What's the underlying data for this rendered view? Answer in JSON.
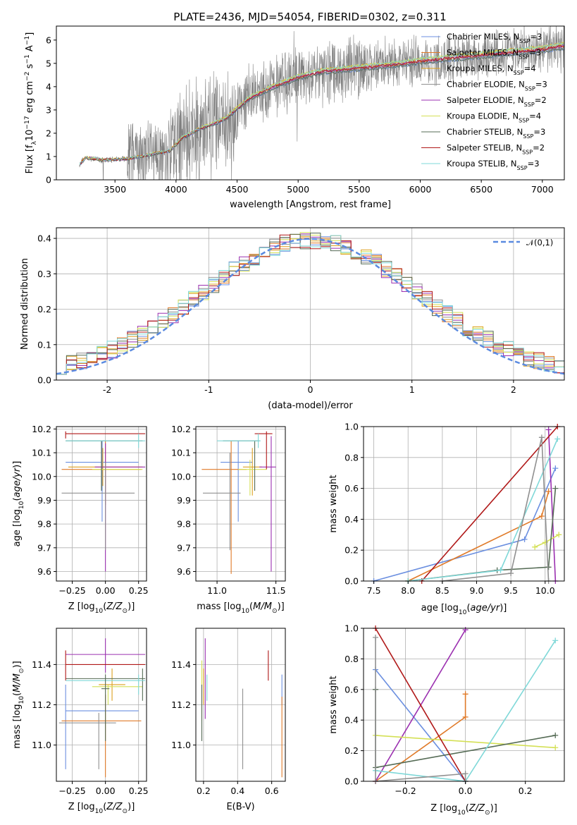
{
  "figure_title": "PLATE=2436, MJD=54054, FIBERID=0302, z=0.311",
  "series": [
    {
      "name": "Chabrier MILES",
      "nssp": "3",
      "color": "#6b8fe0"
    },
    {
      "name": "Salpeter MILES",
      "nssp": "3",
      "color": "#e07a28"
    },
    {
      "name": "Kroupa MILES",
      "nssp": "4",
      "color": "#dda020"
    },
    {
      "name": "Chabrier ELODIE",
      "nssp": "3",
      "color": "#909090"
    },
    {
      "name": "Salpeter ELODIE",
      "nssp": "2",
      "color": "#9b30b0"
    },
    {
      "name": "Kroupa ELODIE",
      "nssp": "4",
      "color": "#d4e055"
    },
    {
      "name": "Chabrier STELIB",
      "nssp": "3",
      "color": "#556b55"
    },
    {
      "name": "Salpeter STELIB",
      "nssp": "2",
      "color": "#b01818"
    },
    {
      "name": "Kroupa STELIB",
      "nssp": "3",
      "color": "#7fd8d8"
    }
  ],
  "chart_data": [
    {
      "id": "spectrum",
      "type": "line",
      "xlabel": "wavelength [Angstrom, rest frame]",
      "ylabel": "Flux [f_λ 10^-17 erg cm^-2 s^-1 A^-1]",
      "xlim": [
        3020,
        7180
      ],
      "ylim": [
        0,
        6.6
      ],
      "xticks": [
        3500,
        4000,
        4500,
        5000,
        5500,
        6000,
        6500,
        7000
      ],
      "yticks": [
        0,
        1,
        2,
        3,
        4,
        5,
        6
      ],
      "data_color": "#808080",
      "grid": false,
      "legend": "top-right",
      "model_knots": [
        [
          3200,
          0.6
        ],
        [
          3260,
          0.95
        ],
        [
          3400,
          0.85
        ],
        [
          3600,
          0.9
        ],
        [
          3800,
          1.1
        ],
        [
          3950,
          1.25
        ],
        [
          4050,
          1.8
        ],
        [
          4200,
          2.2
        ],
        [
          4400,
          2.6
        ],
        [
          4600,
          3.5
        ],
        [
          4800,
          4.0
        ],
        [
          5000,
          4.4
        ],
        [
          5200,
          4.65
        ],
        [
          5500,
          4.8
        ],
        [
          5800,
          4.95
        ],
        [
          6000,
          5.1
        ],
        [
          6300,
          5.25
        ],
        [
          6600,
          5.4
        ],
        [
          7000,
          5.6
        ],
        [
          7180,
          5.75
        ]
      ]
    },
    {
      "id": "residuals",
      "type": "bar",
      "xlabel": "(data-model)/error",
      "ylabel": "Normed distribution",
      "xlim": [
        -2.5,
        2.5
      ],
      "ylim": [
        0,
        0.43
      ],
      "xticks": [
        -2,
        -1,
        0,
        1,
        2
      ],
      "yticks": [
        0,
        0.1,
        0.2,
        0.3,
        0.4
      ],
      "reference": {
        "name": "𝒩(0,1)",
        "mean": 0,
        "sigma": 1,
        "color": "#5a8ae0"
      },
      "grid": true,
      "legend": "top-right",
      "bin_width": 0.1
    },
    {
      "id": "age_vs_Z",
      "type": "scatter",
      "xlabel": "Z [log10(Z/Z_sun)]",
      "ylabel": "age [log10(age/yr)]",
      "xlim": [
        -0.37,
        0.31
      ],
      "ylim": [
        9.56,
        10.21
      ],
      "xticks": [
        -0.25,
        0,
        0.25
      ],
      "xticklabels": [
        "−0.25",
        "0.00",
        "0.25"
      ],
      "yticks": [
        9.6,
        9.7,
        9.8,
        9.9,
        10.0,
        10.1,
        10.2
      ],
      "grid": true,
      "errorbars": [
        {
          "s": 0,
          "x": -0.025,
          "xl": -0.3,
          "xh": 0.25,
          "y": 10.06,
          "yl": 9.81,
          "yh": 10.15
        },
        {
          "s": 1,
          "x": 0.0,
          "xl": -0.33,
          "xh": 0.27,
          "y": 10.03,
          "yl": 9.88,
          "yh": 10.15
        },
        {
          "s": 2,
          "x": -0.02,
          "xl": -0.28,
          "xh": 0.28,
          "y": 10.04,
          "yl": 9.96,
          "yh": 10.12
        },
        {
          "s": 4,
          "x": 0.0,
          "xl": -0.08,
          "xh": 0.3,
          "y": 10.04,
          "yl": 9.6,
          "yh": 10.14
        },
        {
          "s": 5,
          "x": -0.03,
          "xl": -0.1,
          "xh": 0.28,
          "y": 10.03,
          "yl": 9.95,
          "yh": 10.07
        },
        {
          "s": 6,
          "x": -0.03,
          "xl": -0.3,
          "xh": 0.28,
          "y": 10.15,
          "yl": 9.94,
          "yh": 10.15
        },
        {
          "s": 7,
          "x": -0.3,
          "xl": -0.3,
          "xh": 0.3,
          "y": 10.18,
          "yl": 10.16,
          "yh": 10.19
        },
        {
          "s": 8,
          "x": 0.25,
          "xl": -0.3,
          "xh": 0.3,
          "y": 10.15,
          "yl": 10.12,
          "yh": 10.18
        },
        {
          "s": 3,
          "x": 0.0,
          "xl": -0.33,
          "xh": 0.22,
          "y": 9.93,
          "yl": 9.69,
          "yh": 10.06
        }
      ]
    },
    {
      "id": "age_vs_mass",
      "type": "scatter",
      "xlabel": "mass [log10(M/M_sun)]",
      "ylabel": "",
      "xlim": [
        10.82,
        11.58
      ],
      "ylim": [
        9.56,
        10.21
      ],
      "xticks": [
        11.0,
        11.5
      ],
      "xticklabels": [
        "11.0",
        "11.5"
      ],
      "yticks": [
        9.6,
        9.7,
        9.8,
        9.9,
        10.0,
        10.1,
        10.2
      ],
      "grid": true,
      "errorbars": [
        {
          "s": 0,
          "x": 11.18,
          "xl": 11.03,
          "xh": 11.3,
          "y": 10.06,
          "yl": 9.81,
          "yh": 10.15
        },
        {
          "s": 1,
          "x": 11.12,
          "xl": 10.87,
          "xh": 11.25,
          "y": 10.03,
          "yl": 9.59,
          "yh": 10.15
        },
        {
          "s": 2,
          "x": 11.3,
          "xl": 11.22,
          "xh": 11.38,
          "y": 10.04,
          "yl": 9.92,
          "yh": 10.12
        },
        {
          "s": 4,
          "x": 11.46,
          "xl": 11.36,
          "xh": 11.5,
          "y": 10.04,
          "yl": 9.6,
          "yh": 10.17
        },
        {
          "s": 5,
          "x": 11.28,
          "xl": 11.18,
          "xh": 11.42,
          "y": 10.03,
          "yl": 9.92,
          "yh": 10.07
        },
        {
          "s": 6,
          "x": 11.32,
          "xl": 11.05,
          "xh": 11.36,
          "y": 10.15,
          "yl": 9.94,
          "yh": 10.15
        },
        {
          "s": 7,
          "x": 11.42,
          "xl": 11.32,
          "xh": 11.47,
          "y": 10.18,
          "yl": 10.03,
          "yh": 10.19
        },
        {
          "s": 8,
          "x": 11.35,
          "xl": 11.0,
          "xh": 11.37,
          "y": 10.15,
          "yl": 10.12,
          "yh": 10.18
        },
        {
          "s": 3,
          "x": 11.11,
          "xl": 10.88,
          "xh": 11.2,
          "y": 9.93,
          "yl": 9.69,
          "yh": 10.1
        }
      ]
    },
    {
      "id": "mass_weight_vs_age",
      "type": "line",
      "xlabel": "age [log10(age/yr)]",
      "ylabel": "mass weight",
      "xlim": [
        7.35,
        10.28
      ],
      "ylim": [
        0,
        1
      ],
      "xticks": [
        7.5,
        8.0,
        8.5,
        9.0,
        9.5,
        10.0
      ],
      "xticklabels": [
        "7.5",
        "8.0",
        "8.5",
        "9.0",
        "9.5",
        "10.0"
      ],
      "yticks": [
        0,
        0.2,
        0.4,
        0.6,
        0.8,
        1.0
      ],
      "grid": true,
      "lines": [
        {
          "s": 0,
          "pts": [
            [
              7.5,
              0.0
            ],
            [
              9.7,
              0.27
            ],
            [
              10.15,
              0.73
            ]
          ]
        },
        {
          "s": 1,
          "pts": [
            [
              8.0,
              0.0
            ],
            [
              9.95,
              0.42
            ],
            [
              10.05,
              0.58
            ]
          ]
        },
        {
          "s": 4,
          "pts": [
            [
              10.05,
              0.98
            ],
            [
              10.15,
              0.0
            ]
          ]
        },
        {
          "s": 5,
          "pts": [
            [
              9.85,
              0.22
            ],
            [
              10.0,
              0.25
            ],
            [
              10.2,
              0.3
            ]
          ]
        },
        {
          "s": 6,
          "pts": [
            [
              8.0,
              0.0
            ],
            [
              9.3,
              0.07
            ],
            [
              10.05,
              0.09
            ],
            [
              10.15,
              0.6
            ]
          ]
        },
        {
          "s": 7,
          "pts": [
            [
              8.2,
              0.0
            ],
            [
              10.18,
              1.0
            ]
          ]
        },
        {
          "s": 8,
          "pts": [
            [
              8.0,
              0.0
            ],
            [
              9.35,
              0.07
            ],
            [
              10.18,
              0.92
            ]
          ]
        },
        {
          "s": 3,
          "pts": [
            [
              8.5,
              0.0
            ],
            [
              9.5,
              0.05
            ],
            [
              9.95,
              0.93
            ],
            [
              10.05,
              0.0
            ]
          ]
        }
      ]
    },
    {
      "id": "mass_vs_Z",
      "type": "scatter",
      "xlabel": "Z [log10(Z/Z_sun)]",
      "ylabel": "mass [log10(M/M_sun)]",
      "xlim": [
        -0.37,
        0.31
      ],
      "ylim": [
        10.82,
        11.58
      ],
      "xticks": [
        -0.25,
        0,
        0.25
      ],
      "xticklabels": [
        "−0.25",
        "0.00",
        "0.25"
      ],
      "yticks": [
        11.0,
        11.2,
        11.4
      ],
      "grid": true,
      "errorbars": [
        {
          "s": 0,
          "x": -0.3,
          "xl": -0.3,
          "xh": 0.25,
          "y": 11.17,
          "yl": 10.88,
          "yh": 11.3
        },
        {
          "s": 1,
          "x": 0.0,
          "xl": -0.33,
          "xh": 0.27,
          "y": 11.12,
          "yl": 10.84,
          "yh": 11.25
        },
        {
          "s": 2,
          "x": 0.05,
          "xl": -0.05,
          "xh": 0.15,
          "y": 11.3,
          "yl": 11.22,
          "yh": 11.38
        },
        {
          "s": 4,
          "x": 0.0,
          "xl": -0.3,
          "xh": 0.3,
          "y": 11.45,
          "yl": 11.36,
          "yh": 11.53
        },
        {
          "s": 5,
          "x": 0.02,
          "xl": -0.1,
          "xh": 0.28,
          "y": 11.29,
          "yl": 11.2,
          "yh": 11.3
        },
        {
          "s": 6,
          "x": 0.28,
          "xl": -0.3,
          "xh": 0.3,
          "y": 11.33,
          "yl": 11.22,
          "yh": 11.38
        },
        {
          "s": 7,
          "x": -0.3,
          "xl": -0.3,
          "xh": 0.3,
          "y": 11.4,
          "yl": 11.32,
          "yh": 11.47
        },
        {
          "s": 8,
          "x": 0.25,
          "xl": -0.3,
          "xh": 0.3,
          "y": 11.32,
          "yl": 11.25,
          "yh": 11.35
        },
        {
          "s": 3,
          "x": -0.05,
          "xl": -0.35,
          "xh": 0.08,
          "y": 11.11,
          "yl": 10.88,
          "yh": 11.16
        },
        {
          "s": 6,
          "x": 0.0,
          "xl": -0.03,
          "xh": 0.03,
          "y": 11.28,
          "yl": 11.02,
          "yh": 11.35
        }
      ]
    },
    {
      "id": "mass_vs_ebv",
      "type": "scatter",
      "xlabel": "E(B-V)",
      "ylabel": "",
      "xlim": [
        0.155,
        0.68
      ],
      "ylim": [
        10.82,
        11.58
      ],
      "xticks": [
        0.2,
        0.4,
        0.6
      ],
      "xticklabels": [
        "0.2",
        "0.4",
        "0.6"
      ],
      "yticks": [
        11.0,
        11.2,
        11.4
      ],
      "grid": true,
      "vbars": [
        {
          "s": 0,
          "x": 0.66,
          "yl": 11.2,
          "yh": 11.35
        },
        {
          "s": 1,
          "x": 0.66,
          "yl": 10.84,
          "yh": 11.24
        },
        {
          "s": 2,
          "x": 0.2,
          "yl": 11.2,
          "yh": 11.38
        },
        {
          "s": 4,
          "x": 0.21,
          "yl": 11.13,
          "yh": 11.53
        },
        {
          "s": 5,
          "x": 0.19,
          "yl": 11.12,
          "yh": 11.42
        },
        {
          "s": 6,
          "x": 0.19,
          "yl": 11.02,
          "yh": 11.3
        },
        {
          "s": 7,
          "x": 0.58,
          "yl": 11.32,
          "yh": 11.47
        },
        {
          "s": 8,
          "x": 0.22,
          "yl": 11.22,
          "yh": 11.35
        },
        {
          "s": 3,
          "x": 0.43,
          "yl": 10.88,
          "yh": 11.28
        }
      ]
    },
    {
      "id": "mass_weight_vs_Z",
      "type": "line",
      "xlabel": "Z [log10(Z/Z_sun)]",
      "ylabel": "mass weight",
      "xlim": [
        -0.34,
        0.33
      ],
      "ylim": [
        0,
        1
      ],
      "xticks": [
        -0.2,
        0,
        0.2
      ],
      "xticklabels": [
        "−0.2",
        "0.0",
        "0.2"
      ],
      "yticks": [
        0,
        0.2,
        0.4,
        0.6,
        0.8,
        1.0
      ],
      "grid": true,
      "lines": [
        {
          "s": 0,
          "pts": [
            [
              -0.3,
              0.73
            ],
            [
              0.0,
              0.0
            ]
          ]
        },
        {
          "s": 1,
          "pts": [
            [
              -0.3,
              0.0
            ],
            [
              0.0,
              0.42
            ],
            [
              0.0,
              0.57
            ]
          ]
        },
        {
          "s": 4,
          "pts": [
            [
              -0.3,
              0.0
            ],
            [
              0.0,
              0.99
            ]
          ]
        },
        {
          "s": 5,
          "pts": [
            [
              -0.3,
              0.3
            ],
            [
              0.3,
              0.22
            ]
          ]
        },
        {
          "s": 6,
          "pts": [
            [
              -0.3,
              0.6
            ],
            [
              -0.3,
              0.09
            ],
            [
              0.3,
              0.3
            ]
          ]
        },
        {
          "s": 7,
          "pts": [
            [
              -0.3,
              1.0
            ],
            [
              0.0,
              0.0
            ]
          ]
        },
        {
          "s": 8,
          "pts": [
            [
              -0.3,
              0.07
            ],
            [
              0.0,
              0.0
            ],
            [
              0.3,
              0.92
            ]
          ]
        },
        {
          "s": 3,
          "pts": [
            [
              -0.3,
              0.94
            ],
            [
              -0.3,
              0.0
            ],
            [
              0.0,
              0.05
            ],
            [
              0.0,
              0.0
            ]
          ]
        }
      ]
    }
  ]
}
